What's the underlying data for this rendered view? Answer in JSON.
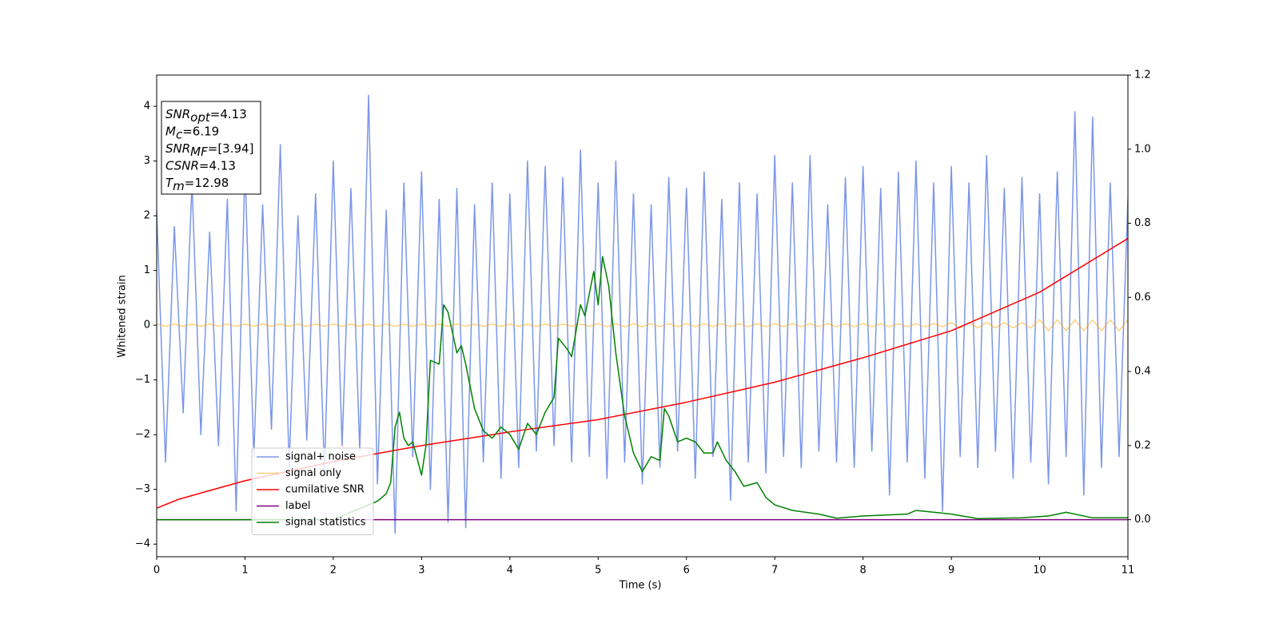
{
  "chart_data": {
    "type": "line",
    "xlabel": "Time (s)",
    "ylabel": "Whitened strain",
    "xlim": [
      0,
      11
    ],
    "ylim": [
      -4.23,
      4.57
    ],
    "y2lim": [
      -0.1,
      1.2
    ],
    "xticks": [
      0,
      1,
      2,
      3,
      4,
      5,
      6,
      7,
      8,
      9,
      10,
      11
    ],
    "yticks": [
      {
        "value": -4,
        "label": "−4"
      },
      {
        "value": -3,
        "label": "−3"
      },
      {
        "value": -2,
        "label": "−2"
      },
      {
        "value": -1,
        "label": "−1"
      },
      0,
      1,
      2,
      3,
      4
    ],
    "y2ticks": [
      {
        "value": 0,
        "label": "0.0"
      },
      {
        "value": 0.2,
        "label": "0.2"
      },
      {
        "value": 0.4,
        "label": "0.4"
      },
      {
        "value": 0.6,
        "label": "0.6"
      },
      {
        "value": 0.8,
        "label": "0.8"
      },
      {
        "value": 1,
        "label": "1.0"
      },
      {
        "value": 1.2,
        "label": "1.2"
      }
    ],
    "legend": "best",
    "annotations": [
      {
        "italic": "SNR",
        "sub": "opt",
        "text": "=4.13"
      },
      {
        "italic": "M",
        "sub": "c",
        "text": "=6.19"
      },
      {
        "italic": "SNR",
        "sub": "MF",
        "text": "=[3.94]"
      },
      {
        "italic": "CSNR",
        "sub": null,
        "text": "=4.13"
      },
      {
        "italic": "T",
        "sub": "m",
        "text": "=12.98"
      }
    ],
    "x": [
      0,
      0.1,
      0.2,
      0.3,
      0.4,
      0.5,
      0.6,
      0.7,
      0.8,
      0.9,
      1,
      1.1,
      1.2,
      1.3,
      1.4,
      1.5,
      1.6,
      1.7,
      1.8,
      1.9,
      2,
      2.1,
      2.2,
      2.3,
      2.4,
      2.5,
      2.6,
      2.7,
      2.8,
      2.9,
      3,
      3.1,
      3.2,
      3.3,
      3.4,
      3.5,
      3.6,
      3.7,
      3.8,
      3.9,
      4,
      4.1,
      4.2,
      4.3,
      4.4,
      4.5,
      4.6,
      4.7,
      4.8,
      4.9,
      5,
      5.1,
      5.2,
      5.3,
      5.4,
      5.5,
      5.6,
      5.7,
      5.8,
      5.9,
      6,
      6.1,
      6.2,
      6.3,
      6.4,
      6.5,
      6.6,
      6.7,
      6.8,
      6.9,
      7,
      7.1,
      7.2,
      7.3,
      7.4,
      7.5,
      7.6,
      7.7,
      7.8,
      7.9,
      8,
      8.1,
      8.2,
      8.3,
      8.4,
      8.5,
      8.6,
      8.7,
      8.8,
      8.9,
      9,
      9.1,
      9.2,
      9.3,
      9.4,
      9.5,
      9.6,
      9.7,
      9.8,
      9.9,
      10,
      10.1,
      10.2,
      10.3,
      10.4,
      10.5,
      10.6,
      10.7,
      10.8,
      10.9,
      11
    ],
    "series": [
      {
        "name": "signal+ noise",
        "color": "royalblue",
        "alpha": 0.7,
        "values": [
          2.1,
          -2.5,
          1.8,
          -1.6,
          2.6,
          -2.0,
          1.7,
          -2.2,
          2.3,
          -3.4,
          2.9,
          -2.4,
          2.2,
          -1.9,
          3.3,
          -2.6,
          2.0,
          -2.1,
          2.4,
          -2.7,
          3.0,
          -2.2,
          2.5,
          -2.3,
          4.2,
          -2.9,
          2.1,
          -3.8,
          2.6,
          -2.4,
          2.8,
          -3.0,
          2.3,
          -3.6,
          2.5,
          -3.7,
          2.2,
          -2.5,
          2.6,
          -2.8,
          2.4,
          -2.6,
          3.0,
          -2.3,
          2.9,
          -2.2,
          2.7,
          -2.5,
          3.2,
          -2.4,
          2.6,
          -2.8,
          3.0,
          -2.5,
          2.4,
          -2.9,
          2.2,
          -2.6,
          2.7,
          -2.3,
          2.5,
          -2.8,
          2.8,
          -2.4,
          2.3,
          -3.2,
          2.6,
          -2.5,
          2.4,
          -2.7,
          3.1,
          -2.4,
          2.6,
          -2.6,
          3.1,
          -2.3,
          2.2,
          -2.5,
          2.7,
          -2.6,
          2.9,
          -2.3,
          2.5,
          -3.1,
          2.8,
          -2.5,
          3.0,
          -2.8,
          2.6,
          -3.4,
          2.9,
          -2.4,
          2.6,
          -2.6,
          3.1,
          -2.3,
          2.5,
          -2.8,
          2.7,
          -2.5,
          2.4,
          -2.9,
          2.8,
          -2.4,
          3.9,
          -3.1,
          3.8,
          -2.6,
          2.6,
          -2.4,
          2.3
        ]
      },
      {
        "name": "signal only",
        "color": "orange",
        "alpha": 0.5,
        "values": [
          0.02,
          -0.02,
          0.02,
          -0.02,
          0.02,
          -0.02,
          0.02,
          -0.02,
          0.02,
          -0.02,
          0.02,
          -0.02,
          0.02,
          -0.02,
          0.02,
          -0.02,
          0.02,
          -0.02,
          0.02,
          -0.02,
          0.02,
          -0.02,
          0.02,
          -0.02,
          0.02,
          -0.02,
          0.02,
          -0.02,
          0.02,
          -0.02,
          0.02,
          -0.02,
          0.02,
          -0.02,
          0.02,
          -0.02,
          0.02,
          -0.02,
          0.02,
          -0.02,
          0.02,
          -0.02,
          0.02,
          -0.02,
          0.02,
          -0.02,
          0.02,
          -0.02,
          0.02,
          -0.02,
          0.03,
          -0.03,
          0.03,
          -0.03,
          0.03,
          -0.03,
          0.03,
          -0.03,
          0.03,
          -0.03,
          0.03,
          -0.03,
          0.03,
          -0.03,
          0.03,
          -0.03,
          0.03,
          -0.03,
          0.03,
          -0.03,
          0.03,
          -0.03,
          0.03,
          -0.03,
          0.03,
          -0.03,
          0.03,
          -0.03,
          0.03,
          -0.03,
          0.03,
          -0.03,
          0.03,
          -0.03,
          0.03,
          -0.03,
          0.03,
          -0.03,
          0.03,
          -0.03,
          0.05,
          -0.05,
          0.05,
          -0.05,
          0.05,
          -0.05,
          0.05,
          -0.05,
          0.05,
          -0.05,
          0.1,
          -0.1,
          0.1,
          -0.1,
          0.1,
          -0.1,
          0.1,
          -0.1,
          0.1,
          -0.1,
          0.1
        ]
      },
      {
        "name": "cumilative SNR",
        "color": "red",
        "axis": "y2",
        "x": [
          0,
          0.25,
          0.5,
          1,
          2,
          3,
          4,
          5,
          6,
          7,
          8,
          9,
          10,
          11
        ],
        "values": [
          0.031,
          0.055,
          0.072,
          0.105,
          0.157,
          0.2,
          0.237,
          0.27,
          0.317,
          0.371,
          0.437,
          0.51,
          0.614,
          0.759
        ]
      },
      {
        "name": "label",
        "color": "purple",
        "axis": "y2",
        "x": [
          0,
          11
        ],
        "values": [
          0,
          0
        ]
      },
      {
        "name": "signal statistics",
        "color": "green",
        "axis": "y2",
        "x": [
          0,
          2,
          2.2,
          2.4,
          2.5,
          2.6,
          2.65,
          2.7,
          2.75,
          2.8,
          2.85,
          2.9,
          3,
          3.05,
          3.1,
          3.2,
          3.25,
          3.3,
          3.4,
          3.45,
          3.5,
          3.6,
          3.7,
          3.8,
          3.9,
          4,
          4.1,
          4.2,
          4.3,
          4.4,
          4.5,
          4.55,
          4.65,
          4.7,
          4.8,
          4.85,
          4.95,
          5,
          5.05,
          5.12,
          5.2,
          5.3,
          5.4,
          5.5,
          5.6,
          5.7,
          5.75,
          5.8,
          5.9,
          6,
          6.1,
          6.2,
          6.3,
          6.35,
          6.45,
          6.55,
          6.65,
          6.8,
          6.9,
          7,
          7.2,
          7.5,
          7.7,
          8,
          8.5,
          8.6,
          9,
          9.3,
          9.8,
          10.1,
          10.3,
          10.6,
          11
        ],
        "values": [
          0,
          0,
          0.02,
          0.04,
          0.05,
          0.07,
          0.1,
          0.25,
          0.29,
          0.22,
          0.2,
          0.21,
          0.12,
          0.2,
          0.43,
          0.42,
          0.58,
          0.56,
          0.45,
          0.47,
          0.42,
          0.3,
          0.24,
          0.22,
          0.25,
          0.23,
          0.19,
          0.26,
          0.23,
          0.29,
          0.33,
          0.49,
          0.46,
          0.44,
          0.58,
          0.55,
          0.67,
          0.58,
          0.71,
          0.63,
          0.45,
          0.28,
          0.18,
          0.13,
          0.17,
          0.16,
          0.3,
          0.28,
          0.21,
          0.22,
          0.21,
          0.18,
          0.18,
          0.21,
          0.16,
          0.13,
          0.09,
          0.1,
          0.06,
          0.04,
          0.025,
          0.015,
          0.004,
          0.01,
          0.015,
          0.025,
          0.015,
          0.003,
          0.005,
          0.01,
          0.02,
          0.005,
          0.005
        ]
      }
    ]
  }
}
